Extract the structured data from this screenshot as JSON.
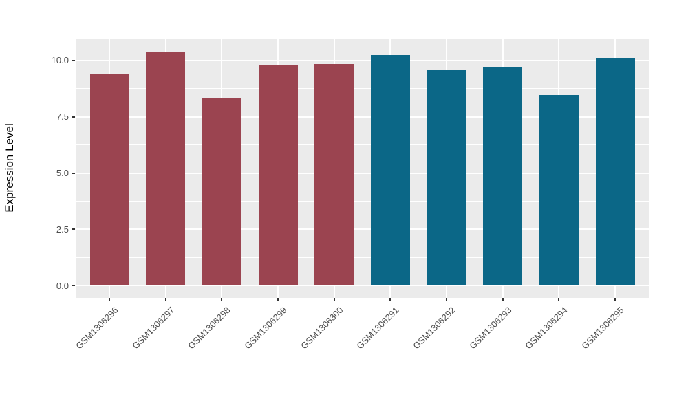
{
  "chart_data": {
    "type": "bar",
    "title": "",
    "xlabel": "",
    "ylabel": "Expression Level",
    "categories": [
      "GSM1306296",
      "GSM1306297",
      "GSM1306298",
      "GSM1306299",
      "GSM1306300",
      "GSM1306291",
      "GSM1306292",
      "GSM1306293",
      "GSM1306294",
      "GSM1306295"
    ],
    "values": [
      9.4,
      10.35,
      8.3,
      9.8,
      9.85,
      10.25,
      9.55,
      9.7,
      8.45,
      10.1
    ],
    "bar_colors": [
      "#9B4450",
      "#9B4450",
      "#9B4450",
      "#9B4450",
      "#9B4450",
      "#0B6787",
      "#0B6787",
      "#0B6787",
      "#0B6787",
      "#0B6787"
    ],
    "group_colors": {
      "group1": "#9B4450",
      "group2": "#0B6787"
    },
    "y_ticks": [
      0.0,
      2.5,
      5.0,
      7.5,
      10.0
    ],
    "y_tick_labels": [
      "0.0",
      "2.5",
      "5.0",
      "7.5",
      "10.0"
    ],
    "y_minor_ticks": [
      1.25,
      3.75,
      6.25,
      8.75
    ],
    "ylim": [
      -0.55,
      10.95
    ],
    "grid": true,
    "legend_position": "none",
    "panel_background": "#EBEBEB",
    "grid_color": "#FFFFFF",
    "tick_mark_color": "#333333",
    "tick_label_color": "#4D4D4D",
    "axis_title_color": "#000000",
    "figure_background": "#FFFFFF"
  }
}
